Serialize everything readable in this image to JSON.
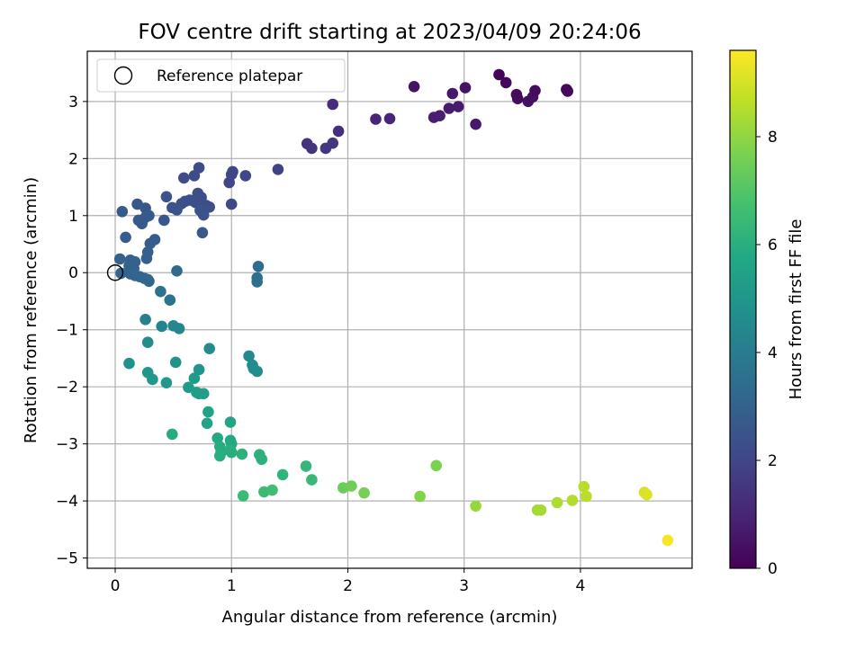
{
  "chart_data": {
    "type": "scatter",
    "title": "FOV centre drift starting at 2023/04/09 20:24:06",
    "xlabel": "Angular distance from reference (arcmin)",
    "ylabel": "Rotation from reference (arcmin)",
    "xlim": [
      -0.24,
      4.96
    ],
    "ylim": [
      -5.18,
      3.88
    ],
    "xticks": [
      0,
      1,
      2,
      3,
      4
    ],
    "yticks": [
      -5,
      -4,
      -3,
      -2,
      -1,
      0,
      1,
      2,
      3
    ],
    "xtick_labels": [
      "0",
      "1",
      "2",
      "3",
      "4"
    ],
    "ytick_labels": [
      "−5",
      "−4",
      "−3",
      "−2",
      "−1",
      "0",
      "1",
      "2",
      "3"
    ],
    "grid": true,
    "legend": {
      "placement": "upper-left",
      "entries": [
        "Reference platepar"
      ]
    },
    "reference_point": {
      "x": 0,
      "y": 0
    },
    "colorbar": {
      "label": "Hours from first FF file",
      "colormap": "viridis",
      "range": [
        0,
        9.6
      ],
      "ticks": [
        0,
        2,
        4,
        6,
        8
      ],
      "tick_labels": [
        "0",
        "2",
        "4",
        "6",
        "8"
      ]
    },
    "points": [
      {
        "x": 3.3,
        "y": 3.47,
        "c": 0.1
      },
      {
        "x": 3.36,
        "y": 3.33,
        "c": 0.2
      },
      {
        "x": 3.45,
        "y": 3.12,
        "c": 0.3
      },
      {
        "x": 3.46,
        "y": 3.05,
        "c": 0.3
      },
      {
        "x": 3.55,
        "y": 3.0,
        "c": 0.4
      },
      {
        "x": 3.59,
        "y": 3.08,
        "c": 0.4
      },
      {
        "x": 3.61,
        "y": 3.19,
        "c": 0.3
      },
      {
        "x": 3.88,
        "y": 3.21,
        "c": 0.2
      },
      {
        "x": 3.89,
        "y": 3.18,
        "c": 0.2
      },
      {
        "x": 2.57,
        "y": 3.26,
        "c": 0.5
      },
      {
        "x": 2.9,
        "y": 3.14,
        "c": 0.6
      },
      {
        "x": 3.01,
        "y": 3.24,
        "c": 0.5
      },
      {
        "x": 2.87,
        "y": 2.88,
        "c": 0.7
      },
      {
        "x": 2.95,
        "y": 2.91,
        "c": 0.7
      },
      {
        "x": 2.74,
        "y": 2.72,
        "c": 0.8
      },
      {
        "x": 2.79,
        "y": 2.75,
        "c": 0.8
      },
      {
        "x": 3.1,
        "y": 2.6,
        "c": 0.6
      },
      {
        "x": 2.24,
        "y": 2.69,
        "c": 1.0
      },
      {
        "x": 2.36,
        "y": 2.7,
        "c": 1.0
      },
      {
        "x": 1.87,
        "y": 2.95,
        "c": 1.2
      },
      {
        "x": 1.92,
        "y": 2.48,
        "c": 1.3
      },
      {
        "x": 1.65,
        "y": 2.26,
        "c": 1.4
      },
      {
        "x": 1.69,
        "y": 2.18,
        "c": 1.4
      },
      {
        "x": 1.81,
        "y": 2.18,
        "c": 1.5
      },
      {
        "x": 1.87,
        "y": 2.27,
        "c": 1.5
      },
      {
        "x": 1.4,
        "y": 1.81,
        "c": 1.9
      },
      {
        "x": 1.12,
        "y": 1.7,
        "c": 2.0
      },
      {
        "x": 1.01,
        "y": 1.77,
        "c": 2.0
      },
      {
        "x": 1.0,
        "y": 1.72,
        "c": 2.0
      },
      {
        "x": 0.98,
        "y": 1.58,
        "c": 2.0
      },
      {
        "x": 1.0,
        "y": 1.2,
        "c": 2.1
      },
      {
        "x": 0.72,
        "y": 1.84,
        "c": 2.2
      },
      {
        "x": 0.68,
        "y": 1.7,
        "c": 2.2
      },
      {
        "x": 0.59,
        "y": 1.66,
        "c": 2.2
      },
      {
        "x": 0.71,
        "y": 1.39,
        "c": 2.3
      },
      {
        "x": 0.74,
        "y": 1.32,
        "c": 2.3
      },
      {
        "x": 0.78,
        "y": 1.18,
        "c": 2.3
      },
      {
        "x": 0.81,
        "y": 1.15,
        "c": 2.3
      },
      {
        "x": 0.6,
        "y": 1.25,
        "c": 2.3
      },
      {
        "x": 0.57,
        "y": 1.21,
        "c": 2.3
      },
      {
        "x": 0.64,
        "y": 1.27,
        "c": 2.3
      },
      {
        "x": 0.69,
        "y": 1.23,
        "c": 2.3
      },
      {
        "x": 0.73,
        "y": 1.09,
        "c": 2.4
      },
      {
        "x": 0.76,
        "y": 1.01,
        "c": 2.4
      },
      {
        "x": 0.44,
        "y": 1.33,
        "c": 2.4
      },
      {
        "x": 0.49,
        "y": 1.14,
        "c": 2.5
      },
      {
        "x": 0.53,
        "y": 1.1,
        "c": 2.5
      },
      {
        "x": 0.42,
        "y": 0.92,
        "c": 2.6
      },
      {
        "x": 0.75,
        "y": 0.7,
        "c": 2.6
      },
      {
        "x": 0.26,
        "y": 1.13,
        "c": 2.6
      },
      {
        "x": 0.19,
        "y": 1.2,
        "c": 2.6
      },
      {
        "x": 0.06,
        "y": 1.07,
        "c": 2.7
      },
      {
        "x": 0.2,
        "y": 0.92,
        "c": 2.7
      },
      {
        "x": 0.23,
        "y": 0.86,
        "c": 2.7
      },
      {
        "x": 0.26,
        "y": 0.97,
        "c": 2.7
      },
      {
        "x": 0.29,
        "y": 1.0,
        "c": 2.7
      },
      {
        "x": 0.09,
        "y": 0.62,
        "c": 2.8
      },
      {
        "x": 0.34,
        "y": 0.58,
        "c": 2.8
      },
      {
        "x": 0.3,
        "y": 0.51,
        "c": 2.8
      },
      {
        "x": 0.28,
        "y": 0.36,
        "c": 2.9
      },
      {
        "x": 0.27,
        "y": 0.25,
        "c": 2.9
      },
      {
        "x": 0.04,
        "y": 0.24,
        "c": 3.0
      },
      {
        "x": 0.13,
        "y": 0.22,
        "c": 3.0
      },
      {
        "x": 0.17,
        "y": 0.19,
        "c": 3.0
      },
      {
        "x": 0.12,
        "y": 0.12,
        "c": 3.0
      },
      {
        "x": 0.16,
        "y": 0.07,
        "c": 3.0
      },
      {
        "x": 0.05,
        "y": -0.01,
        "c": 3.1
      },
      {
        "x": 0.13,
        "y": -0.02,
        "c": 3.1
      },
      {
        "x": 0.17,
        "y": -0.05,
        "c": 3.1
      },
      {
        "x": 0.21,
        "y": -0.07,
        "c": 3.1
      },
      {
        "x": 0.25,
        "y": -0.1,
        "c": 3.2
      },
      {
        "x": 0.28,
        "y": -0.12,
        "c": 3.2
      },
      {
        "x": 0.29,
        "y": -0.15,
        "c": 3.2
      },
      {
        "x": 0.53,
        "y": 0.03,
        "c": 3.3
      },
      {
        "x": 1.23,
        "y": 0.11,
        "c": 3.4
      },
      {
        "x": 1.22,
        "y": -0.09,
        "c": 3.5
      },
      {
        "x": 1.22,
        "y": -0.16,
        "c": 3.5
      },
      {
        "x": 0.39,
        "y": -0.33,
        "c": 3.6
      },
      {
        "x": 0.47,
        "y": -0.48,
        "c": 3.7
      },
      {
        "x": 0.26,
        "y": -0.82,
        "c": 4.2
      },
      {
        "x": 0.4,
        "y": -0.94,
        "c": 4.3
      },
      {
        "x": 0.5,
        "y": -0.93,
        "c": 4.4
      },
      {
        "x": 0.55,
        "y": -0.98,
        "c": 4.4
      },
      {
        "x": 0.28,
        "y": -1.22,
        "c": 4.6
      },
      {
        "x": 0.81,
        "y": -1.33,
        "c": 4.6
      },
      {
        "x": 1.15,
        "y": -1.46,
        "c": 4.5
      },
      {
        "x": 1.18,
        "y": -1.62,
        "c": 4.6
      },
      {
        "x": 1.19,
        "y": -1.68,
        "c": 4.6
      },
      {
        "x": 1.22,
        "y": -1.73,
        "c": 4.6
      },
      {
        "x": 0.12,
        "y": -1.59,
        "c": 4.8
      },
      {
        "x": 0.52,
        "y": -1.57,
        "c": 4.9
      },
      {
        "x": 0.72,
        "y": -1.7,
        "c": 5.0
      },
      {
        "x": 0.28,
        "y": -1.75,
        "c": 5.0
      },
      {
        "x": 0.32,
        "y": -1.87,
        "c": 5.1
      },
      {
        "x": 0.44,
        "y": -1.93,
        "c": 5.1
      },
      {
        "x": 0.68,
        "y": -1.85,
        "c": 5.2
      },
      {
        "x": 0.63,
        "y": -2.01,
        "c": 5.2
      },
      {
        "x": 0.7,
        "y": -2.1,
        "c": 5.3
      },
      {
        "x": 0.72,
        "y": -2.12,
        "c": 5.3
      },
      {
        "x": 0.76,
        "y": -2.12,
        "c": 5.3
      },
      {
        "x": 0.8,
        "y": -2.44,
        "c": 5.5
      },
      {
        "x": 0.79,
        "y": -2.64,
        "c": 5.6
      },
      {
        "x": 0.99,
        "y": -2.62,
        "c": 5.6
      },
      {
        "x": 0.49,
        "y": -2.83,
        "c": 5.9
      },
      {
        "x": 0.88,
        "y": -2.9,
        "c": 5.8
      },
      {
        "x": 0.99,
        "y": -2.94,
        "c": 5.8
      },
      {
        "x": 1.0,
        "y": -3.0,
        "c": 5.8
      },
      {
        "x": 0.9,
        "y": -3.05,
        "c": 5.9
      },
      {
        "x": 0.91,
        "y": -3.15,
        "c": 5.9
      },
      {
        "x": 0.9,
        "y": -3.21,
        "c": 6.0
      },
      {
        "x": 0.99,
        "y": -3.1,
        "c": 6.0
      },
      {
        "x": 1.0,
        "y": -3.15,
        "c": 6.0
      },
      {
        "x": 1.09,
        "y": -3.18,
        "c": 6.1
      },
      {
        "x": 1.24,
        "y": -3.19,
        "c": 6.1
      },
      {
        "x": 1.26,
        "y": -3.27,
        "c": 6.1
      },
      {
        "x": 1.44,
        "y": -3.54,
        "c": 6.2
      },
      {
        "x": 1.64,
        "y": -3.39,
        "c": 6.3
      },
      {
        "x": 1.69,
        "y": -3.63,
        "c": 6.4
      },
      {
        "x": 1.1,
        "y": -3.91,
        "c": 6.5
      },
      {
        "x": 1.28,
        "y": -3.84,
        "c": 6.5
      },
      {
        "x": 1.35,
        "y": -3.81,
        "c": 6.6
      },
      {
        "x": 1.96,
        "y": -3.77,
        "c": 7.4
      },
      {
        "x": 2.03,
        "y": -3.74,
        "c": 7.5
      },
      {
        "x": 2.14,
        "y": -3.86,
        "c": 7.6
      },
      {
        "x": 2.62,
        "y": -3.92,
        "c": 7.8
      },
      {
        "x": 2.76,
        "y": -3.38,
        "c": 7.7
      },
      {
        "x": 3.1,
        "y": -4.09,
        "c": 8.1
      },
      {
        "x": 3.63,
        "y": -4.16,
        "c": 8.3
      },
      {
        "x": 3.66,
        "y": -4.16,
        "c": 8.3
      },
      {
        "x": 3.8,
        "y": -4.03,
        "c": 8.4
      },
      {
        "x": 3.93,
        "y": -3.99,
        "c": 8.5
      },
      {
        "x": 4.03,
        "y": -3.75,
        "c": 8.6
      },
      {
        "x": 4.05,
        "y": -3.92,
        "c": 8.6
      },
      {
        "x": 4.55,
        "y": -3.85,
        "c": 9.0
      },
      {
        "x": 4.57,
        "y": -3.89,
        "c": 9.1
      },
      {
        "x": 4.75,
        "y": -4.69,
        "c": 9.5
      }
    ]
  }
}
